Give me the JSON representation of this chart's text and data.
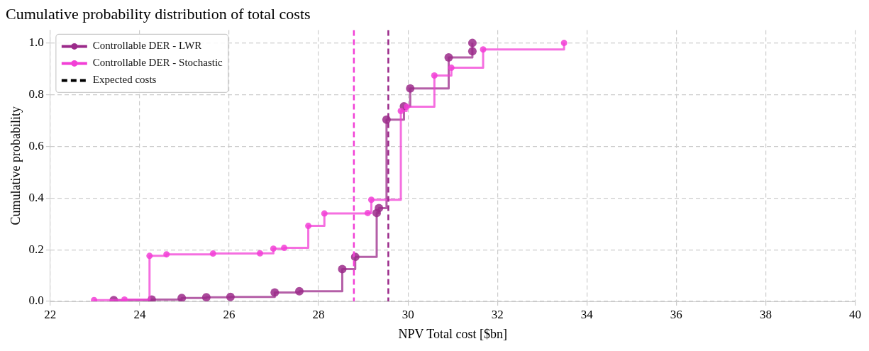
{
  "chart_data": {
    "type": "step",
    "title": "Cumulative probability distribution of total costs",
    "xlabel": "NPV Total cost [$bn]",
    "ylabel": "Cumulative probability",
    "series": [
      {
        "name": "Controllable DER - LWR",
        "color": "#9b2a8a",
        "x": [
          23.42,
          24.27,
          24.94,
          25.49,
          26.03,
          27.02,
          27.57,
          28.53,
          28.82,
          29.3,
          29.35,
          29.52,
          29.91,
          30.05,
          30.91,
          31.44,
          31.44
        ],
        "values": [
          0.005,
          0.007,
          0.013,
          0.016,
          0.017,
          0.034,
          0.039,
          0.125,
          0.172,
          0.342,
          0.361,
          0.703,
          0.755,
          0.824,
          0.944,
          0.968,
          1.0
        ]
      },
      {
        "name": "Controllable DER - Stochastic",
        "color": "#f23fd6",
        "x": [
          22.98,
          23.66,
          24.22,
          24.6,
          25.64,
          26.69,
          26.99,
          27.23,
          27.77,
          28.13,
          29.1,
          29.18,
          29.84,
          29.97,
          30.59,
          30.97,
          31.68,
          33.49
        ],
        "values": [
          0.005,
          0.007,
          0.176,
          0.182,
          0.185,
          0.186,
          0.204,
          0.207,
          0.292,
          0.34,
          0.342,
          0.393,
          0.737,
          0.753,
          0.874,
          0.904,
          0.975,
          1.0
        ]
      }
    ],
    "annotations": [
      "Expected costs"
    ],
    "ref_lines": [
      {
        "axis": "x",
        "value": 28.79,
        "color": "#f23fd6",
        "line_style": "dashed"
      },
      {
        "axis": "x",
        "value": 29.56,
        "color": "#9b2a8a",
        "line_style": "dashed"
      }
    ],
    "xlim": [
      22,
      40
    ],
    "xticks": [
      22,
      24,
      26,
      28,
      30,
      32,
      34,
      36,
      38,
      40
    ],
    "ylim": [
      0,
      1.05
    ],
    "yticks": [
      {
        "value": 0,
        "label": "0.0"
      },
      0.2,
      0.4,
      0.6,
      0.8,
      {
        "value": 1,
        "label": "1.0"
      }
    ],
    "grid": true,
    "legend": "top left",
    "marker": "circle",
    "line_style": "solid"
  }
}
